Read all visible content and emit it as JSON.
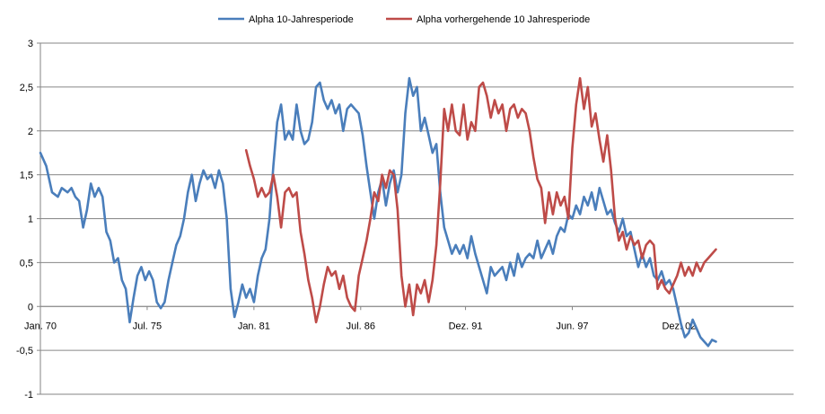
{
  "chart_data": {
    "type": "line",
    "title": "",
    "xlabel": "",
    "ylabel": "",
    "ylim": [
      -1,
      3
    ],
    "y_ticks": [
      {
        "value": 3,
        "label": "3"
      },
      {
        "value": 2.5,
        "label": "2,5"
      },
      {
        "value": 2,
        "label": "2"
      },
      {
        "value": 1.5,
        "label": "1,5"
      },
      {
        "value": 1,
        "label": "1"
      },
      {
        "value": 0.5,
        "label": "0,5"
      },
      {
        "value": 0,
        "label": "0"
      },
      {
        "value": -0.5,
        "label": "-0,5"
      },
      {
        "value": -1,
        "label": "-1"
      }
    ],
    "x_range": [
      1970.0,
      2008.8
    ],
    "x_ticks": [
      {
        "value": 1970.0,
        "label": "Jan. 70"
      },
      {
        "value": 1975.5,
        "label": "Jul. 75"
      },
      {
        "value": 1981.0,
        "label": "Jan. 81"
      },
      {
        "value": 1986.5,
        "label": "Jul. 86"
      },
      {
        "value": 1991.9,
        "label": "Dez. 91"
      },
      {
        "value": 1997.4,
        "label": "Jun. 97"
      },
      {
        "value": 2002.9,
        "label": "Dez. 02"
      }
    ],
    "grid": true,
    "legend": "top",
    "series": [
      {
        "name": "Alpha 10-Jahresperiode",
        "color": "#4a7ebb",
        "points": [
          [
            1970.0,
            1.75
          ],
          [
            1970.3,
            1.6
          ],
          [
            1970.6,
            1.3
          ],
          [
            1970.9,
            1.25
          ],
          [
            1971.1,
            1.35
          ],
          [
            1971.4,
            1.3
          ],
          [
            1971.6,
            1.35
          ],
          [
            1971.8,
            1.25
          ],
          [
            1972.0,
            1.2
          ],
          [
            1972.2,
            0.9
          ],
          [
            1972.4,
            1.1
          ],
          [
            1972.6,
            1.4
          ],
          [
            1972.8,
            1.25
          ],
          [
            1973.0,
            1.35
          ],
          [
            1973.2,
            1.25
          ],
          [
            1973.4,
            0.85
          ],
          [
            1973.6,
            0.75
          ],
          [
            1973.8,
            0.5
          ],
          [
            1974.0,
            0.55
          ],
          [
            1974.2,
            0.3
          ],
          [
            1974.4,
            0.2
          ],
          [
            1974.6,
            -0.18
          ],
          [
            1974.8,
            0.1
          ],
          [
            1975.0,
            0.35
          ],
          [
            1975.2,
            0.45
          ],
          [
            1975.4,
            0.3
          ],
          [
            1975.6,
            0.4
          ],
          [
            1975.8,
            0.3
          ],
          [
            1976.0,
            0.05
          ],
          [
            1976.2,
            -0.02
          ],
          [
            1976.4,
            0.05
          ],
          [
            1976.6,
            0.3
          ],
          [
            1976.8,
            0.5
          ],
          [
            1977.0,
            0.7
          ],
          [
            1977.2,
            0.8
          ],
          [
            1977.4,
            1.0
          ],
          [
            1977.6,
            1.3
          ],
          [
            1977.8,
            1.5
          ],
          [
            1978.0,
            1.2
          ],
          [
            1978.2,
            1.4
          ],
          [
            1978.4,
            1.55
          ],
          [
            1978.6,
            1.45
          ],
          [
            1978.8,
            1.5
          ],
          [
            1979.0,
            1.35
          ],
          [
            1979.2,
            1.55
          ],
          [
            1979.4,
            1.4
          ],
          [
            1979.6,
            1.0
          ],
          [
            1979.8,
            0.2
          ],
          [
            1980.0,
            -0.12
          ],
          [
            1980.2,
            0.05
          ],
          [
            1980.4,
            0.25
          ],
          [
            1980.6,
            0.1
          ],
          [
            1980.8,
            0.2
          ],
          [
            1981.0,
            0.05
          ],
          [
            1981.2,
            0.35
          ],
          [
            1981.4,
            0.55
          ],
          [
            1981.6,
            0.65
          ],
          [
            1981.8,
            1.0
          ],
          [
            1982.0,
            1.6
          ],
          [
            1982.2,
            2.1
          ],
          [
            1982.4,
            2.3
          ],
          [
            1982.6,
            1.9
          ],
          [
            1982.8,
            2.0
          ],
          [
            1983.0,
            1.9
          ],
          [
            1983.2,
            2.3
          ],
          [
            1983.4,
            2.0
          ],
          [
            1983.6,
            1.85
          ],
          [
            1983.8,
            1.9
          ],
          [
            1984.0,
            2.1
          ],
          [
            1984.2,
            2.5
          ],
          [
            1984.4,
            2.55
          ],
          [
            1984.6,
            2.35
          ],
          [
            1984.8,
            2.25
          ],
          [
            1985.0,
            2.35
          ],
          [
            1985.2,
            2.2
          ],
          [
            1985.4,
            2.3
          ],
          [
            1985.6,
            2.0
          ],
          [
            1985.8,
            2.25
          ],
          [
            1986.0,
            2.3
          ],
          [
            1986.2,
            2.25
          ],
          [
            1986.4,
            2.2
          ],
          [
            1986.6,
            1.95
          ],
          [
            1986.8,
            1.6
          ],
          [
            1987.0,
            1.3
          ],
          [
            1987.2,
            1.0
          ],
          [
            1987.4,
            1.3
          ],
          [
            1987.6,
            1.45
          ],
          [
            1987.8,
            1.15
          ],
          [
            1988.0,
            1.4
          ],
          [
            1988.2,
            1.55
          ],
          [
            1988.4,
            1.3
          ],
          [
            1988.6,
            1.5
          ],
          [
            1988.8,
            2.2
          ],
          [
            1989.0,
            2.6
          ],
          [
            1989.2,
            2.4
          ],
          [
            1989.4,
            2.5
          ],
          [
            1989.6,
            2.0
          ],
          [
            1989.8,
            2.15
          ],
          [
            1990.0,
            1.95
          ],
          [
            1990.2,
            1.75
          ],
          [
            1990.4,
            1.85
          ],
          [
            1990.6,
            1.3
          ],
          [
            1990.8,
            0.9
          ],
          [
            1991.0,
            0.75
          ],
          [
            1991.2,
            0.6
          ],
          [
            1991.4,
            0.7
          ],
          [
            1991.6,
            0.6
          ],
          [
            1991.8,
            0.7
          ],
          [
            1992.0,
            0.55
          ],
          [
            1992.2,
            0.8
          ],
          [
            1992.4,
            0.6
          ],
          [
            1992.6,
            0.45
          ],
          [
            1992.8,
            0.3
          ],
          [
            1993.0,
            0.15
          ],
          [
            1993.2,
            0.45
          ],
          [
            1993.4,
            0.35
          ],
          [
            1993.6,
            0.4
          ],
          [
            1993.8,
            0.45
          ],
          [
            1994.0,
            0.3
          ],
          [
            1994.2,
            0.5
          ],
          [
            1994.4,
            0.35
          ],
          [
            1994.6,
            0.6
          ],
          [
            1994.8,
            0.45
          ],
          [
            1995.0,
            0.55
          ],
          [
            1995.2,
            0.6
          ],
          [
            1995.4,
            0.55
          ],
          [
            1995.6,
            0.75
          ],
          [
            1995.8,
            0.55
          ],
          [
            1996.0,
            0.65
          ],
          [
            1996.2,
            0.75
          ],
          [
            1996.4,
            0.6
          ],
          [
            1996.6,
            0.8
          ],
          [
            1996.8,
            0.9
          ],
          [
            1997.0,
            0.85
          ],
          [
            1997.2,
            1.05
          ],
          [
            1997.4,
            1.0
          ],
          [
            1997.6,
            1.15
          ],
          [
            1997.8,
            1.05
          ],
          [
            1998.0,
            1.25
          ],
          [
            1998.2,
            1.15
          ],
          [
            1998.4,
            1.3
          ],
          [
            1998.6,
            1.1
          ],
          [
            1998.8,
            1.35
          ],
          [
            1999.0,
            1.2
          ],
          [
            1999.2,
            1.05
          ],
          [
            1999.4,
            1.1
          ],
          [
            1999.6,
            0.95
          ],
          [
            1999.8,
            0.85
          ],
          [
            2000.0,
            1.0
          ],
          [
            2000.2,
            0.8
          ],
          [
            2000.4,
            0.85
          ],
          [
            2000.6,
            0.65
          ],
          [
            2000.8,
            0.45
          ],
          [
            2001.0,
            0.6
          ],
          [
            2001.2,
            0.45
          ],
          [
            2001.4,
            0.55
          ],
          [
            2001.6,
            0.35
          ],
          [
            2001.8,
            0.3
          ],
          [
            2002.0,
            0.4
          ],
          [
            2002.2,
            0.25
          ],
          [
            2002.4,
            0.3
          ],
          [
            2002.6,
            0.2
          ],
          [
            2002.8,
            0.0
          ],
          [
            2003.0,
            -0.2
          ],
          [
            2003.2,
            -0.35
          ],
          [
            2003.4,
            -0.3
          ],
          [
            2003.6,
            -0.15
          ],
          [
            2003.8,
            -0.25
          ],
          [
            2004.0,
            -0.35
          ],
          [
            2004.2,
            -0.4
          ],
          [
            2004.4,
            -0.45
          ],
          [
            2004.6,
            -0.38
          ],
          [
            2004.8,
            -0.4
          ]
        ]
      },
      {
        "name": "Alpha vorhergehende 10 Jahresperiode",
        "color": "#be4b48",
        "points": [
          [
            1980.6,
            1.78
          ],
          [
            1980.8,
            1.6
          ],
          [
            1981.0,
            1.45
          ],
          [
            1981.2,
            1.25
          ],
          [
            1981.4,
            1.35
          ],
          [
            1981.6,
            1.25
          ],
          [
            1981.8,
            1.3
          ],
          [
            1982.0,
            1.5
          ],
          [
            1982.2,
            1.25
          ],
          [
            1982.4,
            0.9
          ],
          [
            1982.6,
            1.3
          ],
          [
            1982.8,
            1.35
          ],
          [
            1983.0,
            1.25
          ],
          [
            1983.2,
            1.3
          ],
          [
            1983.4,
            0.85
          ],
          [
            1983.6,
            0.6
          ],
          [
            1983.8,
            0.3
          ],
          [
            1984.0,
            0.1
          ],
          [
            1984.2,
            -0.18
          ],
          [
            1984.4,
            0.0
          ],
          [
            1984.6,
            0.25
          ],
          [
            1984.8,
            0.45
          ],
          [
            1985.0,
            0.35
          ],
          [
            1985.2,
            0.4
          ],
          [
            1985.4,
            0.2
          ],
          [
            1985.6,
            0.35
          ],
          [
            1985.8,
            0.1
          ],
          [
            1986.0,
            0.0
          ],
          [
            1986.2,
            -0.05
          ],
          [
            1986.4,
            0.35
          ],
          [
            1986.6,
            0.55
          ],
          [
            1986.8,
            0.75
          ],
          [
            1987.0,
            1.0
          ],
          [
            1987.2,
            1.3
          ],
          [
            1987.4,
            1.2
          ],
          [
            1987.6,
            1.5
          ],
          [
            1987.8,
            1.35
          ],
          [
            1988.0,
            1.55
          ],
          [
            1988.2,
            1.5
          ],
          [
            1988.4,
            1.1
          ],
          [
            1988.6,
            0.35
          ],
          [
            1988.8,
            0.0
          ],
          [
            1989.0,
            0.25
          ],
          [
            1989.2,
            -0.1
          ],
          [
            1989.4,
            0.25
          ],
          [
            1989.6,
            0.15
          ],
          [
            1989.8,
            0.3
          ],
          [
            1990.0,
            0.05
          ],
          [
            1990.2,
            0.3
          ],
          [
            1990.4,
            0.7
          ],
          [
            1990.6,
            1.4
          ],
          [
            1990.8,
            2.25
          ],
          [
            1991.0,
            2.0
          ],
          [
            1991.2,
            2.3
          ],
          [
            1991.4,
            2.0
          ],
          [
            1991.6,
            1.95
          ],
          [
            1991.8,
            2.3
          ],
          [
            1992.0,
            1.9
          ],
          [
            1992.2,
            2.1
          ],
          [
            1992.4,
            2.0
          ],
          [
            1992.6,
            2.5
          ],
          [
            1992.8,
            2.55
          ],
          [
            1993.0,
            2.4
          ],
          [
            1993.2,
            2.15
          ],
          [
            1993.4,
            2.35
          ],
          [
            1993.6,
            2.2
          ],
          [
            1993.8,
            2.3
          ],
          [
            1994.0,
            2.0
          ],
          [
            1994.2,
            2.25
          ],
          [
            1994.4,
            2.3
          ],
          [
            1994.6,
            2.15
          ],
          [
            1994.8,
            2.25
          ],
          [
            1995.0,
            2.2
          ],
          [
            1995.2,
            2.0
          ],
          [
            1995.4,
            1.7
          ],
          [
            1995.6,
            1.45
          ],
          [
            1995.8,
            1.35
          ],
          [
            1996.0,
            0.95
          ],
          [
            1996.2,
            1.3
          ],
          [
            1996.4,
            1.05
          ],
          [
            1996.6,
            1.3
          ],
          [
            1996.8,
            1.15
          ],
          [
            1997.0,
            1.25
          ],
          [
            1997.2,
            1.0
          ],
          [
            1997.4,
            1.8
          ],
          [
            1997.6,
            2.3
          ],
          [
            1997.8,
            2.6
          ],
          [
            1998.0,
            2.25
          ],
          [
            1998.2,
            2.5
          ],
          [
            1998.4,
            2.05
          ],
          [
            1998.6,
            2.2
          ],
          [
            1998.8,
            1.9
          ],
          [
            1999.0,
            1.65
          ],
          [
            1999.2,
            1.95
          ],
          [
            1999.4,
            1.55
          ],
          [
            1999.6,
            1.0
          ],
          [
            1999.8,
            0.75
          ],
          [
            2000.0,
            0.85
          ],
          [
            2000.2,
            0.65
          ],
          [
            2000.4,
            0.8
          ],
          [
            2000.6,
            0.7
          ],
          [
            2000.8,
            0.75
          ],
          [
            2001.0,
            0.55
          ],
          [
            2001.2,
            0.7
          ],
          [
            2001.4,
            0.75
          ],
          [
            2001.6,
            0.7
          ],
          [
            2001.8,
            0.2
          ],
          [
            2002.0,
            0.3
          ],
          [
            2002.2,
            0.2
          ],
          [
            2002.4,
            0.15
          ],
          [
            2002.6,
            0.25
          ],
          [
            2002.8,
            0.35
          ],
          [
            2003.0,
            0.5
          ],
          [
            2003.2,
            0.35
          ],
          [
            2003.4,
            0.45
          ],
          [
            2003.6,
            0.35
          ],
          [
            2003.8,
            0.5
          ],
          [
            2004.0,
            0.4
          ],
          [
            2004.2,
            0.5
          ],
          [
            2004.4,
            0.55
          ],
          [
            2004.6,
            0.6
          ],
          [
            2004.8,
            0.65
          ]
        ]
      }
    ]
  }
}
